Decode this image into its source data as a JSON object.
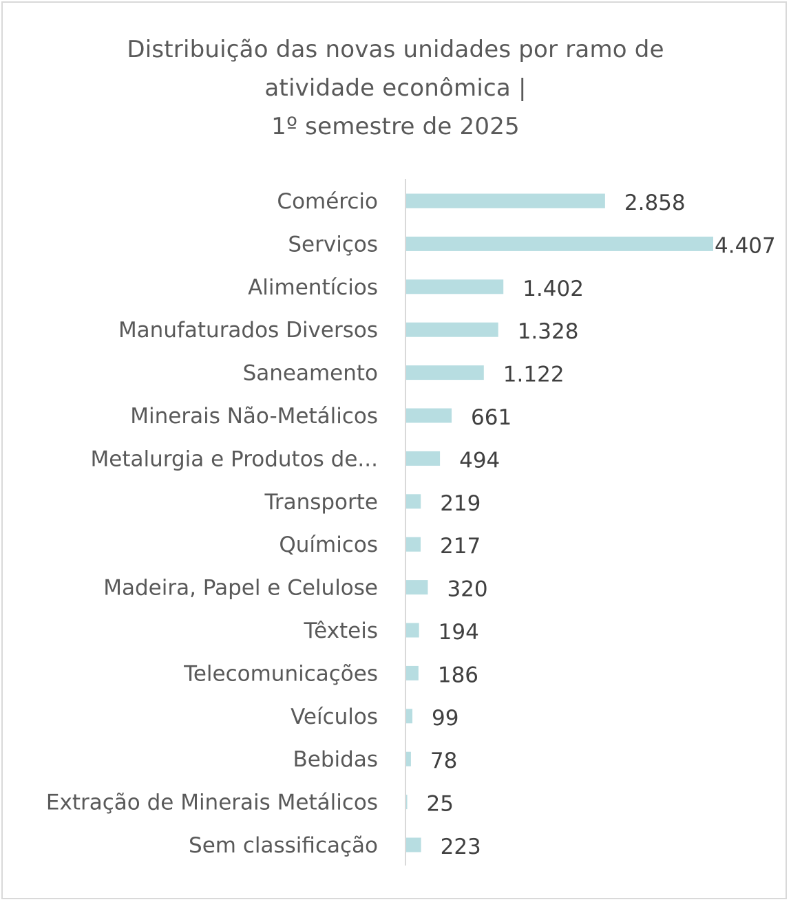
{
  "chart_data": {
    "type": "bar",
    "orientation": "horizontal",
    "title_lines": [
      "Distribuição das novas unidades por ramo de",
      "atividade econômica |",
      "1º semestre de 2025"
    ],
    "categories": [
      "Comércio",
      "Serviços",
      "Alimentícios",
      "Manufaturados Diversos",
      "Saneamento",
      "Minerais Não-Metálicos",
      "Metalurgia e Produtos de...",
      "Transporte",
      "Químicos",
      "Madeira, Papel e Celulose",
      "Têxteis",
      "Telecomunicações",
      "Veículos",
      "Bebidas",
      "Extração de Minerais Metálicos",
      "Sem classificação"
    ],
    "values": [
      2858,
      4407,
      1402,
      1328,
      1122,
      661,
      494,
      219,
      217,
      320,
      194,
      186,
      99,
      78,
      25,
      223
    ],
    "value_labels": [
      "2.858",
      "4.407",
      "1.402",
      "1.328",
      "1.122",
      "661",
      "494",
      "219",
      "217",
      "320",
      "194",
      "186",
      "99",
      "78",
      "25",
      "223"
    ],
    "xlim": [
      0,
      4407
    ],
    "grid": false,
    "legend": "none",
    "bar_color": "#b7dde1",
    "axis_color": "#d9d9d9"
  }
}
